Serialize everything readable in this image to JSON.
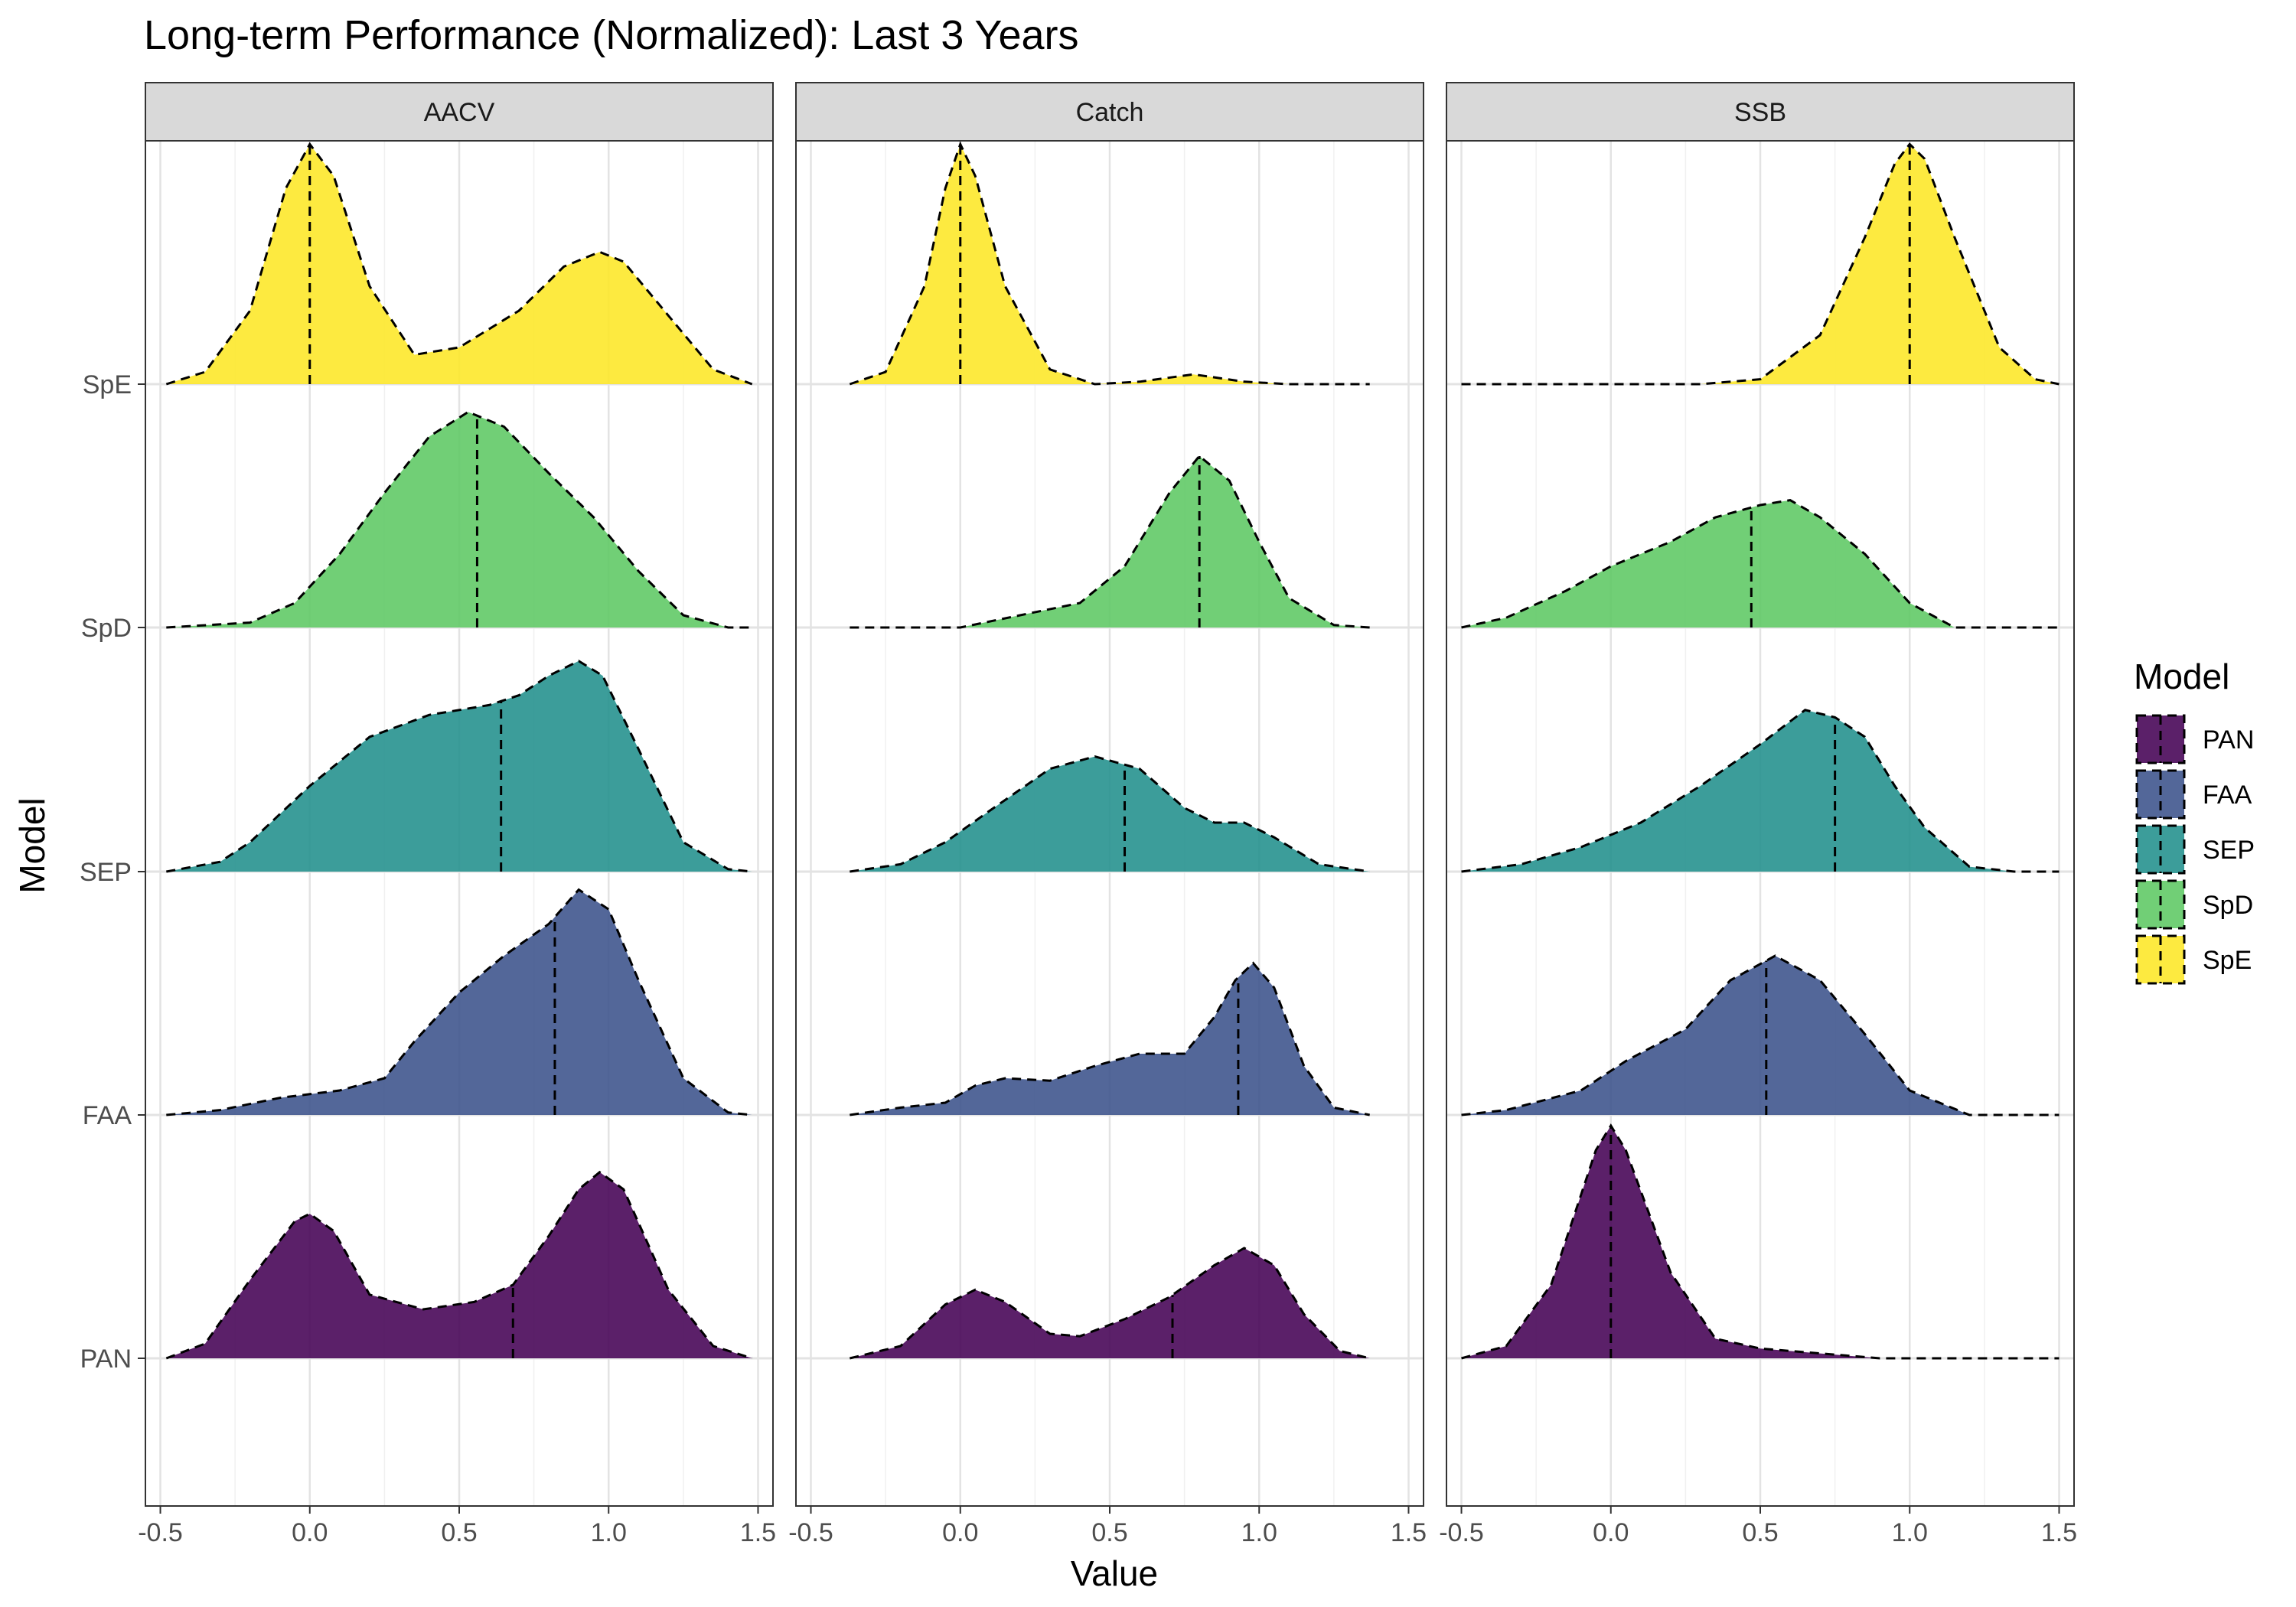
{
  "chart_data": {
    "type": "area",
    "title": "Long-term Performance (Normalized): Last 3 Years",
    "xlabel": "Value",
    "ylabel": "Model",
    "xlim": [
      -0.55,
      1.55
    ],
    "x_ticks": [
      "-0.5",
      "0.0",
      "0.5",
      "1.0",
      "1.5"
    ],
    "x_tick_values": [
      -0.5,
      0,
      0.5,
      1,
      1.5
    ],
    "y_categories": [
      "PAN",
      "FAA",
      "SEP",
      "SpD",
      "SpE"
    ],
    "grid": true,
    "legend": {
      "title": "Model",
      "position": "right",
      "entries": [
        "PAN",
        "FAA",
        "SEP",
        "SpD",
        "SpE"
      ]
    },
    "colors": {
      "PAN": "#440154",
      "FAA": "#3B528B",
      "SEP": "#21908C",
      "SpD": "#5DC863",
      "SpE": "#FDE725"
    },
    "panels": [
      {
        "name": "AACV",
        "x_range": [
          -0.48,
          1.48
        ],
        "series": [
          {
            "name": "PAN",
            "median": 0.68,
            "points": [
              [
                -0.48,
                0.0
              ],
              [
                -0.35,
                0.06
              ],
              [
                -0.2,
                0.32
              ],
              [
                -0.05,
                0.56
              ],
              [
                0.0,
                0.59
              ],
              [
                0.08,
                0.52
              ],
              [
                0.2,
                0.26
              ],
              [
                0.38,
                0.2
              ],
              [
                0.55,
                0.23
              ],
              [
                0.68,
                0.3
              ],
              [
                0.8,
                0.5
              ],
              [
                0.9,
                0.69
              ],
              [
                0.97,
                0.76
              ],
              [
                1.05,
                0.69
              ],
              [
                1.2,
                0.28
              ],
              [
                1.35,
                0.05
              ],
              [
                1.48,
                0.0
              ]
            ]
          },
          {
            "name": "FAA",
            "median": 0.82,
            "points": [
              [
                -0.48,
                0.0
              ],
              [
                -0.3,
                0.02
              ],
              [
                -0.1,
                0.07
              ],
              [
                0.1,
                0.1
              ],
              [
                0.25,
                0.15
              ],
              [
                0.35,
                0.3
              ],
              [
                0.5,
                0.5
              ],
              [
                0.65,
                0.65
              ],
              [
                0.8,
                0.78
              ],
              [
                0.9,
                0.92
              ],
              [
                1.0,
                0.84
              ],
              [
                1.1,
                0.55
              ],
              [
                1.25,
                0.15
              ],
              [
                1.4,
                0.01
              ],
              [
                1.48,
                0.0
              ]
            ]
          },
          {
            "name": "SEP",
            "median": 0.64,
            "points": [
              [
                -0.48,
                0.0
              ],
              [
                -0.3,
                0.04
              ],
              [
                -0.2,
                0.12
              ],
              [
                0.0,
                0.35
              ],
              [
                0.2,
                0.55
              ],
              [
                0.4,
                0.64
              ],
              [
                0.6,
                0.68
              ],
              [
                0.7,
                0.72
              ],
              [
                0.8,
                0.8
              ],
              [
                0.9,
                0.86
              ],
              [
                0.98,
                0.8
              ],
              [
                1.1,
                0.5
              ],
              [
                1.25,
                0.12
              ],
              [
                1.4,
                0.01
              ],
              [
                1.48,
                0.0
              ]
            ]
          },
          {
            "name": "SpD",
            "median": 0.56,
            "points": [
              [
                -0.48,
                0.0
              ],
              [
                -0.2,
                0.02
              ],
              [
                -0.05,
                0.1
              ],
              [
                0.1,
                0.3
              ],
              [
                0.25,
                0.55
              ],
              [
                0.4,
                0.78
              ],
              [
                0.53,
                0.88
              ],
              [
                0.65,
                0.82
              ],
              [
                0.8,
                0.63
              ],
              [
                0.95,
                0.45
              ],
              [
                1.1,
                0.23
              ],
              [
                1.25,
                0.05
              ],
              [
                1.4,
                0.0
              ],
              [
                1.48,
                0.0
              ]
            ]
          },
          {
            "name": "SpE",
            "median": 0.0,
            "points": [
              [
                -0.48,
                0.0
              ],
              [
                -0.35,
                0.05
              ],
              [
                -0.2,
                0.3
              ],
              [
                -0.08,
                0.8
              ],
              [
                0.0,
                0.98
              ],
              [
                0.08,
                0.85
              ],
              [
                0.2,
                0.4
              ],
              [
                0.35,
                0.12
              ],
              [
                0.5,
                0.15
              ],
              [
                0.7,
                0.3
              ],
              [
                0.85,
                0.48
              ],
              [
                0.97,
                0.54
              ],
              [
                1.05,
                0.5
              ],
              [
                1.2,
                0.28
              ],
              [
                1.35,
                0.06
              ],
              [
                1.48,
                0.0
              ]
            ]
          }
        ]
      },
      {
        "name": "Catch",
        "x_range": [
          -0.37,
          1.37
        ],
        "series": [
          {
            "name": "PAN",
            "median": 0.71,
            "points": [
              [
                -0.37,
                0.0
              ],
              [
                -0.2,
                0.05
              ],
              [
                -0.05,
                0.22
              ],
              [
                0.05,
                0.28
              ],
              [
                0.15,
                0.23
              ],
              [
                0.3,
                0.1
              ],
              [
                0.4,
                0.09
              ],
              [
                0.55,
                0.16
              ],
              [
                0.7,
                0.25
              ],
              [
                0.85,
                0.38
              ],
              [
                0.95,
                0.45
              ],
              [
                1.05,
                0.38
              ],
              [
                1.15,
                0.18
              ],
              [
                1.27,
                0.03
              ],
              [
                1.37,
                0.0
              ]
            ]
          },
          {
            "name": "FAA",
            "median": 0.93,
            "points": [
              [
                -0.37,
                0.0
              ],
              [
                -0.2,
                0.03
              ],
              [
                -0.05,
                0.05
              ],
              [
                0.05,
                0.12
              ],
              [
                0.15,
                0.15
              ],
              [
                0.3,
                0.14
              ],
              [
                0.45,
                0.2
              ],
              [
                0.6,
                0.25
              ],
              [
                0.75,
                0.25
              ],
              [
                0.85,
                0.4
              ],
              [
                0.92,
                0.55
              ],
              [
                0.98,
                0.62
              ],
              [
                1.05,
                0.52
              ],
              [
                1.15,
                0.2
              ],
              [
                1.25,
                0.03
              ],
              [
                1.37,
                0.0
              ]
            ]
          },
          {
            "name": "SEP",
            "median": 0.55,
            "points": [
              [
                -0.37,
                0.0
              ],
              [
                -0.2,
                0.03
              ],
              [
                -0.05,
                0.12
              ],
              [
                0.1,
                0.25
              ],
              [
                0.3,
                0.42
              ],
              [
                0.45,
                0.47
              ],
              [
                0.6,
                0.42
              ],
              [
                0.75,
                0.26
              ],
              [
                0.85,
                0.2
              ],
              [
                0.95,
                0.2
              ],
              [
                1.05,
                0.14
              ],
              [
                1.2,
                0.03
              ],
              [
                1.37,
                0.0
              ]
            ]
          },
          {
            "name": "SpD",
            "median": 0.8,
            "points": [
              [
                -0.37,
                0.0
              ],
              [
                0.0,
                0.0
              ],
              [
                0.2,
                0.05
              ],
              [
                0.4,
                0.1
              ],
              [
                0.55,
                0.25
              ],
              [
                0.7,
                0.55
              ],
              [
                0.8,
                0.7
              ],
              [
                0.9,
                0.6
              ],
              [
                1.0,
                0.35
              ],
              [
                1.1,
                0.12
              ],
              [
                1.25,
                0.01
              ],
              [
                1.37,
                0.0
              ]
            ]
          },
          {
            "name": "SpE",
            "median": 0.0,
            "points": [
              [
                -0.37,
                0.0
              ],
              [
                -0.25,
                0.05
              ],
              [
                -0.12,
                0.4
              ],
              [
                -0.05,
                0.8
              ],
              [
                0.0,
                0.98
              ],
              [
                0.05,
                0.85
              ],
              [
                0.15,
                0.4
              ],
              [
                0.3,
                0.06
              ],
              [
                0.45,
                0.0
              ],
              [
                0.6,
                0.01
              ],
              [
                0.78,
                0.04
              ],
              [
                0.95,
                0.01
              ],
              [
                1.1,
                0.0
              ],
              [
                1.37,
                0.0
              ]
            ]
          }
        ]
      },
      {
        "name": "SSB",
        "x_range": [
          -0.5,
          1.5
        ],
        "series": [
          {
            "name": "PAN",
            "median": 0.0,
            "points": [
              [
                -0.5,
                0.0
              ],
              [
                -0.35,
                0.05
              ],
              [
                -0.2,
                0.3
              ],
              [
                -0.05,
                0.85
              ],
              [
                0.0,
                0.95
              ],
              [
                0.05,
                0.85
              ],
              [
                0.2,
                0.35
              ],
              [
                0.35,
                0.08
              ],
              [
                0.5,
                0.04
              ],
              [
                0.7,
                0.02
              ],
              [
                0.9,
                0.0
              ],
              [
                1.5,
                0.0
              ]
            ]
          },
          {
            "name": "FAA",
            "median": 0.52,
            "points": [
              [
                -0.5,
                0.0
              ],
              [
                -0.35,
                0.02
              ],
              [
                -0.1,
                0.1
              ],
              [
                0.05,
                0.22
              ],
              [
                0.25,
                0.35
              ],
              [
                0.4,
                0.55
              ],
              [
                0.55,
                0.65
              ],
              [
                0.7,
                0.55
              ],
              [
                0.85,
                0.33
              ],
              [
                1.0,
                0.1
              ],
              [
                1.2,
                0.0
              ],
              [
                1.5,
                0.0
              ]
            ]
          },
          {
            "name": "SEP",
            "median": 0.75,
            "points": [
              [
                -0.5,
                0.0
              ],
              [
                -0.3,
                0.03
              ],
              [
                -0.1,
                0.1
              ],
              [
                0.1,
                0.2
              ],
              [
                0.3,
                0.35
              ],
              [
                0.5,
                0.52
              ],
              [
                0.65,
                0.66
              ],
              [
                0.75,
                0.63
              ],
              [
                0.85,
                0.55
              ],
              [
                0.95,
                0.35
              ],
              [
                1.05,
                0.18
              ],
              [
                1.2,
                0.02
              ],
              [
                1.35,
                0.0
              ],
              [
                1.5,
                0.0
              ]
            ]
          },
          {
            "name": "SpD",
            "median": 0.47,
            "points": [
              [
                -0.5,
                0.0
              ],
              [
                -0.35,
                0.04
              ],
              [
                -0.15,
                0.15
              ],
              [
                0.0,
                0.25
              ],
              [
                0.2,
                0.35
              ],
              [
                0.35,
                0.45
              ],
              [
                0.5,
                0.5
              ],
              [
                0.6,
                0.52
              ],
              [
                0.7,
                0.45
              ],
              [
                0.85,
                0.3
              ],
              [
                1.0,
                0.1
              ],
              [
                1.15,
                0.0
              ],
              [
                1.5,
                0.0
              ]
            ]
          },
          {
            "name": "SpE",
            "median": 1.0,
            "points": [
              [
                -0.5,
                0.0
              ],
              [
                0.3,
                0.0
              ],
              [
                0.5,
                0.02
              ],
              [
                0.7,
                0.2
              ],
              [
                0.85,
                0.6
              ],
              [
                0.95,
                0.9
              ],
              [
                1.0,
                0.98
              ],
              [
                1.05,
                0.92
              ],
              [
                1.15,
                0.6
              ],
              [
                1.3,
                0.15
              ],
              [
                1.42,
                0.02
              ],
              [
                1.5,
                0.0
              ]
            ]
          }
        ]
      }
    ]
  }
}
